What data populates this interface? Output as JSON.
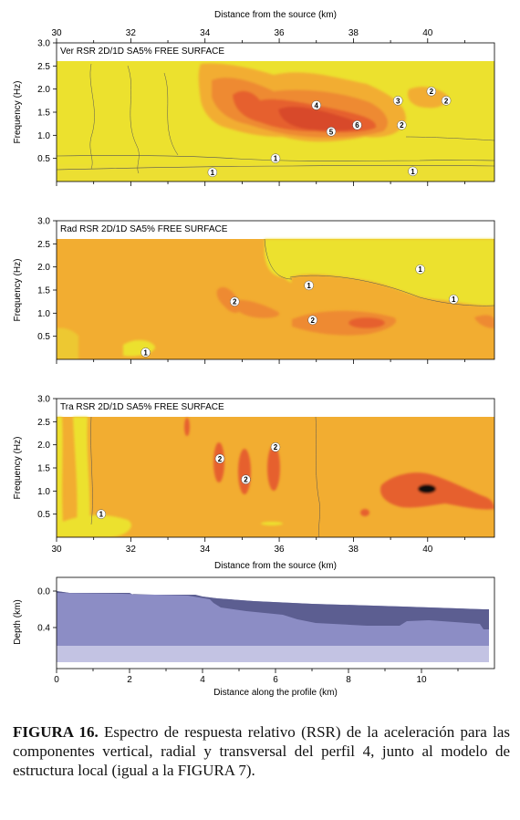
{
  "chart_data": [
    {
      "type": "heatmap",
      "title": "Ver RSR 2D/1D SA5% FREE SURFACE",
      "top_xlabel": "Distance from the source (km)",
      "ylabel": "Frequency (Hz)",
      "xlim": [
        30,
        41.8
      ],
      "ylim": [
        0,
        3.0
      ],
      "x_ticks": [
        "30",
        "32",
        "34",
        "36",
        "38",
        "40"
      ],
      "y_ticks": [
        "0.5",
        "1.0",
        "1.5",
        "2.0",
        "2.5",
        "3.0"
      ],
      "data_max_frequency": 2.6,
      "colors": {
        "1": "#ece12e",
        "2": "#f2ad31",
        "3": "#ee8a31",
        "4": "#e6602e",
        "5": "#d84a2c"
      },
      "contour_labels": [
        {
          "text": "1",
          "x": 34.2,
          "y": 0.2
        },
        {
          "text": "1",
          "x": 35.9,
          "y": 0.5
        },
        {
          "text": "1",
          "x": 39.6,
          "y": 0.22
        },
        {
          "text": "2",
          "x": 40.1,
          "y": 1.95
        },
        {
          "text": "2",
          "x": 40.5,
          "y": 1.75
        },
        {
          "text": "2",
          "x": 39.3,
          "y": 1.22
        },
        {
          "text": "3",
          "x": 39.2,
          "y": 1.75
        },
        {
          "text": "4",
          "x": 37.0,
          "y": 1.65
        },
        {
          "text": "5",
          "x": 37.4,
          "y": 1.08
        },
        {
          "text": "6",
          "x": 38.1,
          "y": 1.22
        }
      ]
    },
    {
      "type": "heatmap",
      "title": "Rad RSR 2D/1D SA5% FREE SURFACE",
      "ylabel": "Frequency (Hz)",
      "xlim": [
        30,
        41.8
      ],
      "ylim": [
        0,
        3.0
      ],
      "y_ticks": [
        "0.5",
        "1.0",
        "1.5",
        "2.0",
        "2.5",
        "3.0"
      ],
      "data_max_frequency": 2.6,
      "contour_labels": [
        {
          "text": "1",
          "x": 32.4,
          "y": 0.15
        },
        {
          "text": "1",
          "x": 36.8,
          "y": 1.6
        },
        {
          "text": "1",
          "x": 39.8,
          "y": 1.95
        },
        {
          "text": "1",
          "x": 40.7,
          "y": 1.3
        },
        {
          "text": "2",
          "x": 34.8,
          "y": 1.25
        },
        {
          "text": "2",
          "x": 36.9,
          "y": 0.85
        }
      ]
    },
    {
      "type": "heatmap",
      "title": "Tra RSR 2D/1D SA5% FREE SURFACE",
      "xlabel": "Distance from the source (km)",
      "ylabel": "Frequency (Hz)",
      "xlim": [
        30,
        41.8
      ],
      "ylim": [
        0,
        3.0
      ],
      "x_ticks": [
        "30",
        "32",
        "34",
        "36",
        "38",
        "40"
      ],
      "y_ticks": [
        "0.5",
        "1.0",
        "1.5",
        "2.0",
        "2.5",
        "3.0"
      ],
      "data_max_frequency": 2.6,
      "contour_labels": [
        {
          "text": "1",
          "x": 31.2,
          "y": 0.5
        },
        {
          "text": "2",
          "x": 34.4,
          "y": 1.7
        },
        {
          "text": "2",
          "x": 35.1,
          "y": 1.25
        },
        {
          "text": "2",
          "x": 35.9,
          "y": 1.95
        }
      ]
    },
    {
      "type": "area",
      "xlabel": "Distance along the profile (km)",
      "ylabel": "Depth (km)",
      "xlim": [
        0,
        12
      ],
      "ylim": [
        0.85,
        -0.15
      ],
      "x_ticks": [
        "0",
        "2",
        "4",
        "6",
        "8",
        "10"
      ],
      "y_ticks": [
        "0.0",
        "0.4"
      ],
      "layers": [
        {
          "name": "upper",
          "color": "#5c5e91",
          "top": [
            [
              0,
              0
            ],
            [
              0.35,
              0.02
            ],
            [
              2,
              0.02
            ],
            [
              2.1,
              0.04
            ],
            [
              3.8,
              0.04
            ],
            [
              4.0,
              0.06
            ],
            [
              4.4,
              0.08
            ],
            [
              5.4,
              0.11
            ],
            [
              7.0,
              0.14
            ],
            [
              9.5,
              0.17
            ],
            [
              11.7,
              0.2
            ]
          ],
          "bottom": [
            [
              0,
              0.02
            ],
            [
              1.8,
              0.03
            ],
            [
              3.6,
              0.05
            ],
            [
              4.2,
              0.09
            ],
            [
              4.3,
              0.13
            ],
            [
              4.5,
              0.18
            ],
            [
              5.2,
              0.22
            ],
            [
              6.2,
              0.26
            ],
            [
              6.6,
              0.31
            ],
            [
              7.1,
              0.35
            ],
            [
              8.5,
              0.38
            ],
            [
              9.4,
              0.38
            ],
            [
              9.6,
              0.33
            ],
            [
              10.2,
              0.32
            ],
            [
              11.6,
              0.36
            ],
            [
              11.7,
              0.42
            ]
          ]
        },
        {
          "name": "middle",
          "color": "#8c8dc5",
          "bottom_depth": 0.6
        },
        {
          "name": "bedrock",
          "color": "#c3c3e3",
          "bottom_depth": 0.78
        }
      ]
    }
  ],
  "caption": {
    "label": "FIGURA 16.",
    "text": "Espectro de respuesta relativo (RSR) de la aceleración para las componentes vertical, radial y transversal del perfil 4, junto al modelo de estructura local (igual a la FIGURA 7)."
  }
}
